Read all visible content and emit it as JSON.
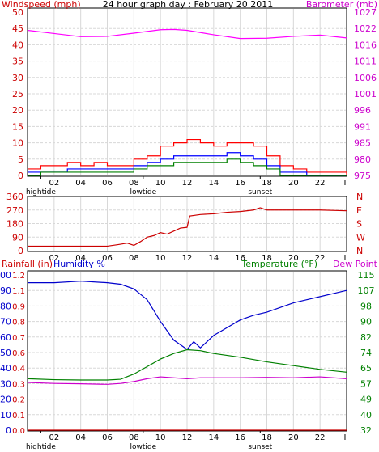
{
  "chart_data": [
    {
      "type": "line",
      "title": "24 hour graph day : February 20 2011",
      "ylabel": "Windspeed (mph)",
      "y2label": "Barometer (mb)",
      "ylim": [
        0,
        50
      ],
      "yticks": [
        "0",
        "5",
        "10",
        "15",
        "20",
        "25",
        "30",
        "35",
        "40",
        "45",
        "50"
      ],
      "y2ticks": [
        "975",
        "980",
        "985",
        "991",
        "996",
        "1001",
        "1006",
        "1011",
        "1016",
        "1022",
        "1027"
      ],
      "xticks": [
        "02",
        "04",
        "06",
        "08",
        "10",
        "12",
        "14",
        "16",
        "18",
        "20",
        "22",
        "I"
      ],
      "xmarkers": [
        {
          "label": "hightide",
          "hour": 1
        },
        {
          "label": "lowtide",
          "hour": 8.7
        },
        {
          "label": "sunset",
          "hour": 17.5
        }
      ],
      "series": [
        {
          "name": "Barometer",
          "color": "#ff00ff",
          "axis": "right",
          "x": [
            0,
            2,
            4,
            6,
            8,
            10,
            11,
            12,
            14,
            16,
            18,
            20,
            22,
            24
          ],
          "values": [
            1021.2,
            1020.2,
            1019.2,
            1019.3,
            1020.3,
            1021.4,
            1021.5,
            1021.2,
            1019.8,
            1018.6,
            1018.7,
            1019.3,
            1019.7,
            1018.8
          ]
        },
        {
          "name": "Wind gust",
          "color": "#ff0000",
          "axis": "left",
          "x": [
            0,
            1,
            2,
            3,
            4,
            5,
            6,
            7,
            8,
            9,
            10,
            11,
            12,
            13,
            14,
            15,
            16,
            17,
            18,
            19,
            20,
            21,
            22,
            23,
            24
          ],
          "values": [
            2,
            3,
            3,
            4,
            3,
            4,
            3,
            3,
            5,
            6,
            9,
            10,
            11,
            10,
            9,
            10,
            10,
            9,
            6,
            3,
            2,
            1,
            1,
            1,
            0
          ]
        },
        {
          "name": "Wind average",
          "color": "#0000ff",
          "axis": "left",
          "x": [
            0,
            1,
            2,
            3,
            4,
            5,
            6,
            7,
            8,
            9,
            10,
            11,
            12,
            13,
            14,
            15,
            16,
            17,
            18,
            19,
            20,
            21,
            22,
            23,
            24
          ],
          "values": [
            1,
            1,
            1,
            2,
            2,
            2,
            2,
            2,
            3,
            4,
            5,
            6,
            6,
            6,
            6,
            7,
            6,
            5,
            3,
            1,
            1,
            0,
            0,
            0,
            0
          ]
        },
        {
          "name": "Wind speed",
          "color": "#008000",
          "axis": "left",
          "x": [
            0,
            1,
            2,
            3,
            4,
            5,
            6,
            7,
            8,
            9,
            10,
            11,
            12,
            13,
            14,
            15,
            16,
            17,
            18,
            19,
            20,
            21,
            22,
            23,
            24
          ],
          "values": [
            0,
            1,
            1,
            1,
            1,
            1,
            1,
            1,
            2,
            3,
            3,
            4,
            4,
            4,
            4,
            5,
            4,
            3,
            2,
            0,
            0,
            0,
            0,
            0,
            0
          ]
        }
      ]
    },
    {
      "type": "line",
      "ylim": [
        0,
        360
      ],
      "yticks": [
        "0",
        "90",
        "180",
        "270",
        "360"
      ],
      "y2ticks": [
        "N",
        "E",
        "S",
        "W",
        "N"
      ],
      "xticks": [
        "02",
        "04",
        "06",
        "08",
        "10",
        "12",
        "14",
        "16",
        "18",
        "20",
        "22",
        "I"
      ],
      "series": [
        {
          "name": "Wind direction",
          "color": "#cc0000",
          "x": [
            0,
            2,
            4,
            6,
            6.8,
            7.5,
            8,
            8.5,
            9,
            9.5,
            10,
            10.5,
            11,
            11.5,
            12,
            12.2,
            13,
            14,
            15,
            16,
            17,
            17.5,
            18,
            19,
            20,
            22,
            24
          ],
          "values": [
            30,
            30,
            30,
            30,
            40,
            50,
            35,
            60,
            90,
            100,
            120,
            110,
            130,
            150,
            155,
            230,
            240,
            245,
            255,
            260,
            270,
            285,
            270,
            270,
            270,
            270,
            265
          ]
        }
      ]
    },
    {
      "type": "line",
      "ylabel": "Rainfall (in)",
      "ylabel2": "Humidity %",
      "y2label": "Temperature (°F)",
      "y2label2": "Dew Point",
      "yticks_rain": [
        "0.0",
        "0.1",
        "0.2",
        "0.3",
        "0.4",
        "0.6",
        "0.7",
        "0.8",
        "0.9",
        "1.1",
        "1.2"
      ],
      "yticks_hum": [
        "0",
        "10",
        "20",
        "30",
        "40",
        "50",
        "60",
        "70",
        "80",
        "90",
        "100"
      ],
      "y2ticks": [
        "32",
        "40",
        "49",
        "57",
        "65",
        "74",
        "82",
        "90",
        "98",
        "107",
        "115"
      ],
      "ylim": [
        0,
        100
      ],
      "y2lim": [
        32,
        115
      ],
      "xticks": [
        "02",
        "04",
        "06",
        "08",
        "10",
        "12",
        "14",
        "16",
        "18",
        "20",
        "22",
        "I"
      ],
      "xmarkers": [
        {
          "label": "hightide",
          "hour": 1
        },
        {
          "label": "lowtide",
          "hour": 8.7
        },
        {
          "label": "sunset",
          "hour": 17.5
        }
      ],
      "series": [
        {
          "name": "Humidity",
          "color": "#0000cc",
          "axis": "left",
          "x": [
            0,
            2,
            4,
            6,
            7,
            8,
            9,
            10,
            11,
            11.5,
            12,
            12.5,
            13,
            14,
            15,
            16,
            17,
            18,
            19,
            20,
            21,
            22,
            23,
            24
          ],
          "values": [
            95,
            95,
            96,
            95,
            94,
            91,
            84,
            70,
            58,
            55,
            52,
            57,
            53,
            61,
            66,
            71,
            74,
            76,
            79,
            82,
            84,
            86,
            88,
            90
          ]
        },
        {
          "name": "Temperature",
          "color": "#008000",
          "axis": "right",
          "x": [
            0,
            2,
            4,
            6,
            7,
            8,
            9,
            10,
            11,
            12,
            13,
            14,
            16,
            18,
            20,
            22,
            24
          ],
          "values": [
            59.5,
            59,
            58.8,
            58.8,
            59.2,
            62,
            66,
            70,
            73,
            75,
            74.5,
            73,
            71,
            68.5,
            66.5,
            64.5,
            63
          ]
        },
        {
          "name": "Dew Point",
          "color": "#cc00cc",
          "axis": "right",
          "x": [
            0,
            2,
            4,
            6,
            7,
            8,
            9,
            10,
            11,
            12,
            13,
            14,
            16,
            18,
            20,
            22,
            24
          ],
          "values": [
            57.5,
            57,
            56.8,
            56.5,
            57,
            58,
            59.5,
            60.5,
            60,
            59.5,
            60,
            60,
            60,
            60.2,
            60,
            60.5,
            59.5
          ]
        },
        {
          "name": "Rainfall",
          "color": "#cc0000",
          "axis": "rain",
          "x": [
            0,
            24
          ],
          "values": [
            0,
            0
          ]
        }
      ]
    }
  ]
}
